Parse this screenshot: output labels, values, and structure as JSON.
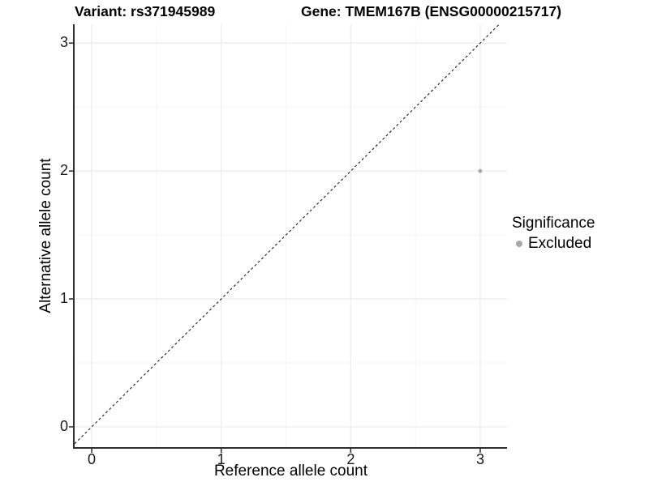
{
  "header": {
    "variant_title": "Variant: rs371945989",
    "gene_title": "Gene: TMEM167B (ENSG00000215717)"
  },
  "chart_data": {
    "type": "scatter",
    "xlabel": "Reference allele count",
    "ylabel": "Alternative allele count",
    "xlim": [
      -0.132,
      3.207
    ],
    "ylim": [
      -0.165,
      3.147
    ],
    "xticks": [
      0,
      1,
      2,
      3
    ],
    "yticks": [
      0,
      1,
      2,
      3
    ],
    "minor_gridlines_x": [
      0.5,
      1.5,
      2.5
    ],
    "minor_gridlines_y": [
      0.5,
      1.5,
      2.5
    ],
    "grid": "on",
    "identity_line": {
      "style": "dashed",
      "equation": "y = x"
    },
    "series": [
      {
        "name": "Excluded",
        "color": "#a8a8a8",
        "points": [
          {
            "x": 3,
            "y": 2
          }
        ]
      }
    ],
    "legend": {
      "title": "Significance",
      "position": "right",
      "items": [
        {
          "label": "Excluded",
          "color": "#a8a8a8"
        }
      ]
    }
  },
  "colors": {
    "background": "#ffffff",
    "grid_major": "#ebebeb",
    "grid_minor": "#f3f3f3",
    "axis_line": "#2e2e2e",
    "tick_mark": "#333333",
    "dashed_line": "#1a1a1a",
    "text": "#000000"
  }
}
